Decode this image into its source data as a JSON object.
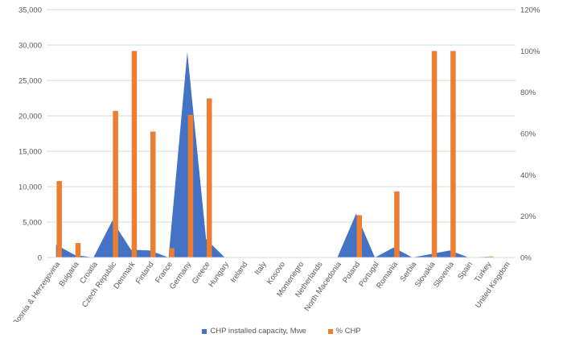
{
  "chart_data": {
    "type": "area",
    "categories": [
      "Bosnia & Herzegovina",
      "Bulgaria",
      "Croatia",
      "Czech Republic",
      "Denmark",
      "Finland",
      "France",
      "Germany",
      "Greece",
      "Hungary",
      "Ireland",
      "Italy",
      "Kosovo",
      "Montenegro",
      "Netherlands",
      "North Macedonia",
      "Poland",
      "Portugal",
      "Romania",
      "Serbia",
      "Slovakia",
      "Slovenia",
      "Spain",
      "Turkey",
      "United Kingdom"
    ],
    "left_axis": {
      "ylim": [
        0,
        35000
      ],
      "ticks": [
        "0",
        "5,000",
        "10,000",
        "15,000",
        "20,000",
        "25,000",
        "30,000",
        "35,000"
      ]
    },
    "right_axis": {
      "ylim": [
        0,
        120
      ],
      "ticks": [
        "0%",
        "20%",
        "40%",
        "60%",
        "80%",
        "100%",
        "120%"
      ]
    },
    "series": [
      {
        "name": "CHP installed capacity, Mwe",
        "type": "area",
        "axis": "left",
        "color": "#4472C4",
        "values": [
          1800,
          350,
          0,
          5200,
          1100,
          1000,
          0,
          29000,
          2600,
          0,
          0,
          0,
          0,
          0,
          0,
          0,
          6200,
          0,
          1400,
          0,
          500,
          1000,
          0,
          100,
          0
        ]
      },
      {
        "name": "% CHP",
        "type": "bar",
        "axis": "right",
        "color": "#ED7D31",
        "values": [
          37,
          7,
          0,
          71,
          100,
          61,
          4.5,
          69,
          77,
          0,
          0,
          0,
          0,
          0,
          0,
          0,
          20.5,
          0,
          32,
          0,
          100,
          100,
          0,
          0.5,
          0
        ]
      }
    ],
    "grid": true,
    "legend_position": "bottom"
  }
}
